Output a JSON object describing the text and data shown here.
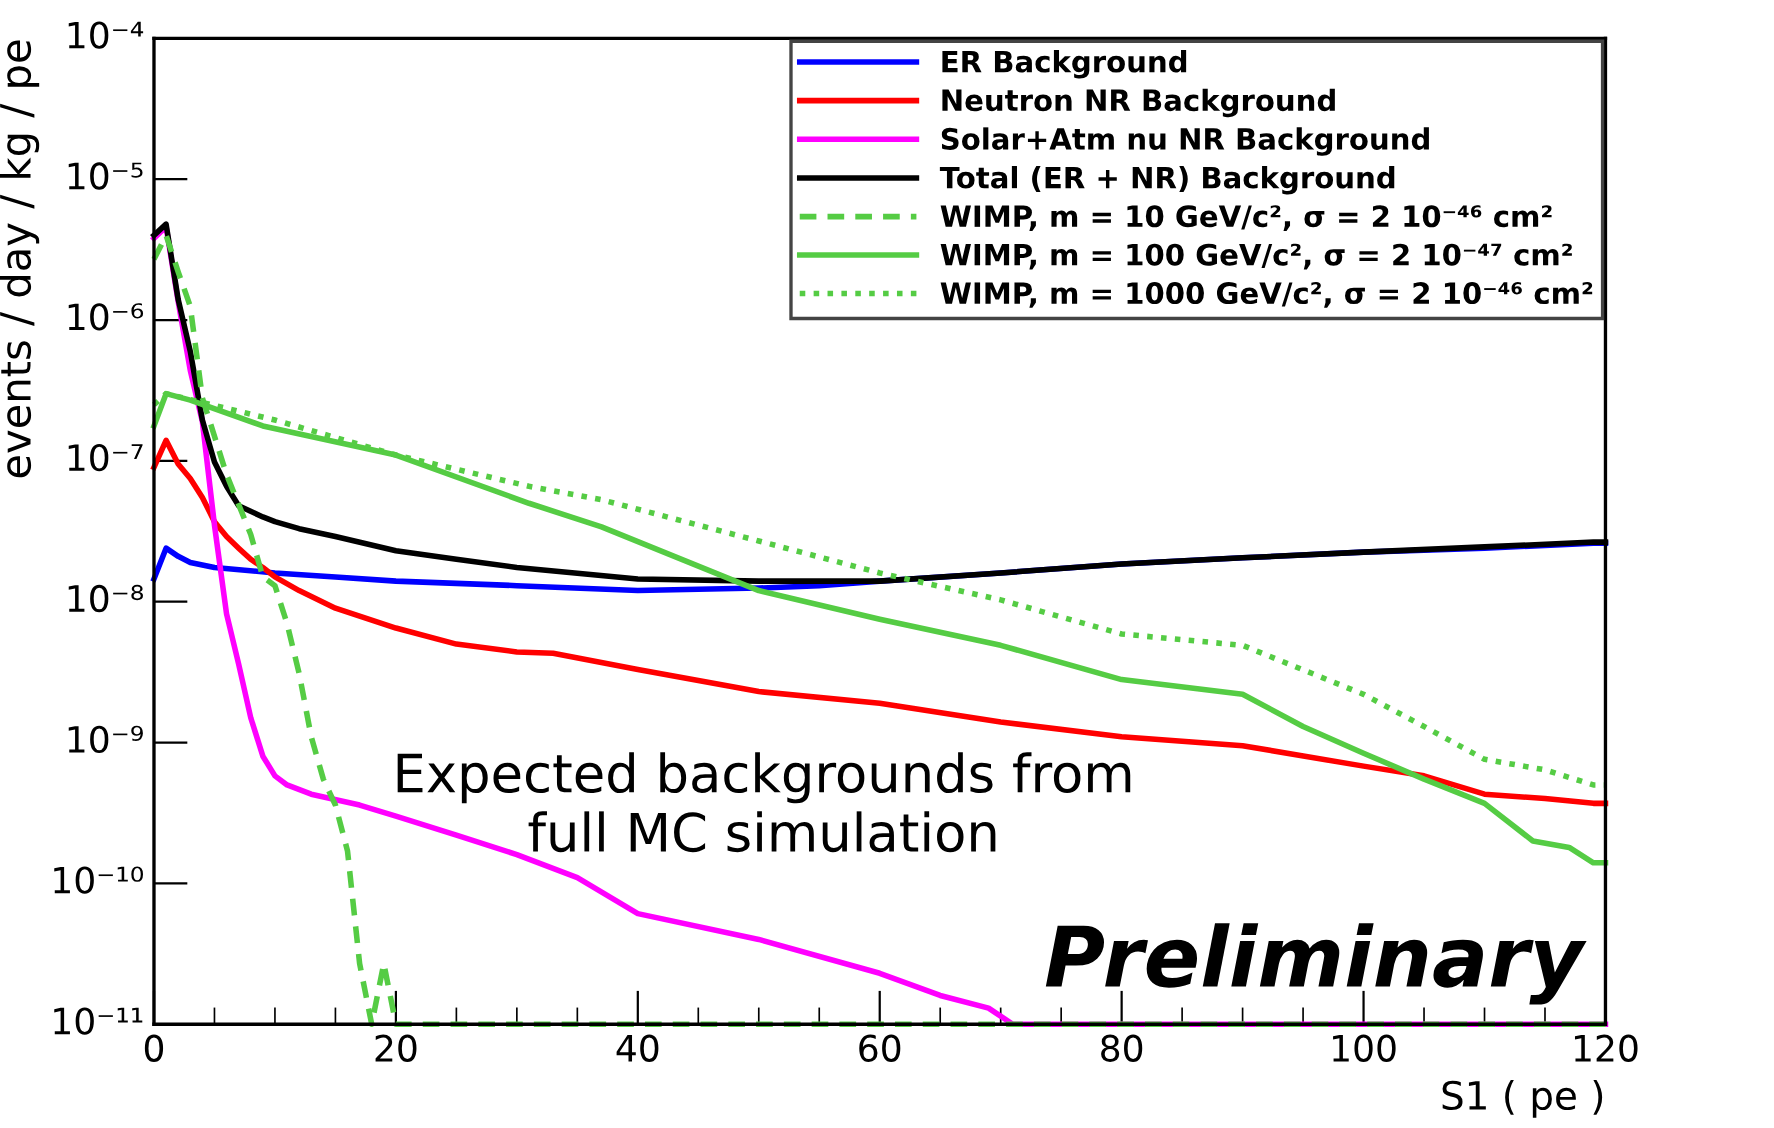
{
  "chart_data": {
    "type": "line",
    "xlabel": "S1 ( pe )",
    "ylabel": "events / day / kg / pe",
    "xlim": [
      0,
      120
    ],
    "xticks": [
      0,
      20,
      40,
      60,
      80,
      100,
      120
    ],
    "ylim": [
      1e-11,
      0.0001
    ],
    "log": "y",
    "yticks": [
      {
        "value": 1e-11,
        "label": "10⁻¹¹"
      },
      {
        "value": 1e-10,
        "label": "10⁻¹⁰"
      },
      {
        "value": 1e-09,
        "label": "10⁻⁹"
      },
      {
        "value": 1e-08,
        "label": "10⁻⁸"
      },
      {
        "value": 1e-07,
        "label": "10⁻⁷"
      },
      {
        "value": 1e-06,
        "label": "10⁻⁶"
      },
      {
        "value": 1e-05,
        "label": "10⁻⁵"
      },
      {
        "value": 0.0001,
        "label": "10⁻⁴"
      }
    ],
    "grid": false,
    "legend": "top right",
    "annotations": [
      "Expected backgrounds from\nfull MC simulation",
      "Preliminary"
    ],
    "series": [
      {
        "name": "ER Background",
        "color": "#0000ff",
        "line_style": "solid",
        "x": [
          0,
          1,
          2,
          3,
          5,
          10,
          15,
          20,
          30,
          40,
          50,
          55,
          60,
          70,
          80,
          90,
          100,
          110,
          119,
          120
        ],
        "values": [
          1.45e-08,
          2.4e-08,
          2.1e-08,
          1.9e-08,
          1.75e-08,
          1.6e-08,
          1.5e-08,
          1.4e-08,
          1.3e-08,
          1.2e-08,
          1.25e-08,
          1.3e-08,
          1.4e-08,
          1.6e-08,
          1.85e-08,
          2.05e-08,
          2.25e-08,
          2.4e-08,
          2.6e-08,
          2.6e-08
        ]
      },
      {
        "name": "Neutron NR Background",
        "color": "#ff0000",
        "line_style": "solid",
        "x": [
          0,
          1,
          2,
          3,
          4,
          5,
          6,
          7,
          8,
          9,
          10,
          12,
          15,
          20,
          25,
          30,
          33,
          40,
          50,
          60,
          70,
          80,
          90,
          100,
          105,
          110,
          115,
          119,
          120
        ],
        "values": [
          9e-08,
          1.4e-07,
          9.5e-08,
          7.5e-08,
          5.5e-08,
          3.7e-08,
          2.9e-08,
          2.4e-08,
          2e-08,
          1.75e-08,
          1.5e-08,
          1.2e-08,
          9e-09,
          6.5e-09,
          5e-09,
          4.4e-09,
          4.3e-09,
          3.3e-09,
          2.3e-09,
          1.9e-09,
          1.4e-09,
          1.1e-09,
          9.5e-10,
          6.8e-10,
          5.8e-10,
          4.3e-10,
          4e-10,
          3.7e-10,
          3.7e-10
        ]
      },
      {
        "name": "Solar+Atm nu NR Background",
        "color": "#ff00ff",
        "line_style": "solid",
        "x": [
          0,
          1,
          2,
          3,
          4,
          5,
          6,
          7,
          8,
          9,
          10,
          11,
          13,
          17,
          20,
          25,
          30,
          35,
          40,
          50,
          60,
          65,
          69,
          71,
          120
        ],
        "values": [
          3.8e-06,
          4.6e-06,
          1.35e-06,
          4.4e-07,
          1.9e-07,
          3.5e-08,
          8.2e-09,
          3.6e-09,
          1.5e-09,
          8e-10,
          5.8e-10,
          5e-10,
          4.3e-10,
          3.6e-10,
          3e-10,
          2.2e-10,
          1.6e-10,
          1.1e-10,
          6.1e-11,
          4e-11,
          2.3e-11,
          1.6e-11,
          1.3e-11,
          1e-11,
          1e-11
        ]
      },
      {
        "name": "Total (ER + NR) Background",
        "color": "#000000",
        "line_style": "solid",
        "x": [
          0,
          1,
          2,
          3,
          4,
          5,
          6,
          7,
          9,
          10,
          12,
          15,
          20,
          25,
          30,
          40,
          50,
          60,
          70,
          80,
          90,
          100,
          110,
          119,
          120
        ],
        "values": [
          4e-06,
          4.8e-06,
          1.4e-06,
          6e-07,
          1.95e-07,
          9.8e-08,
          6.6e-08,
          4.8e-08,
          4e-08,
          3.7e-08,
          3.3e-08,
          2.9e-08,
          2.3e-08,
          2e-08,
          1.75e-08,
          1.45e-08,
          1.4e-08,
          1.4e-08,
          1.6e-08,
          1.85e-08,
          2.05e-08,
          2.25e-08,
          2.45e-08,
          2.65e-08,
          2.65e-08
        ]
      },
      {
        "name": "WIMP, m = 10 GeV/c², σ = 2 10⁻⁴⁶ cm²",
        "color": "#55cc44",
        "line_style": "dashed",
        "x": [
          0,
          1,
          2,
          3,
          4,
          6,
          8,
          9,
          10,
          11,
          12,
          13,
          14,
          15,
          16,
          17,
          18,
          19,
          20,
          120
        ],
        "values": [
          2.7e-06,
          4e-06,
          2.2e-06,
          1.25e-06,
          2.8e-07,
          8e-08,
          3e-08,
          1.5e-08,
          1.3e-08,
          7e-09,
          3.1e-09,
          1.1e-09,
          5.5e-10,
          3.6e-10,
          1.7e-10,
          2.7e-11,
          1e-11,
          2.7e-11,
          1e-11,
          1e-11
        ]
      },
      {
        "name": "WIMP, m = 100 GeV/c², σ = 2 10⁻⁴⁷ cm²",
        "color": "#55cc44",
        "line_style": "solid",
        "x": [
          0,
          1,
          3,
          9,
          20,
          31,
          37,
          50,
          60,
          70,
          80,
          90,
          95,
          100,
          105,
          110,
          114,
          117,
          119,
          120
        ],
        "values": [
          1.77e-07,
          3e-07,
          2.7e-07,
          1.77e-07,
          1.1e-07,
          5e-08,
          3.4e-08,
          1.2e-08,
          7.5e-09,
          4.9e-09,
          2.8e-09,
          2.2e-09,
          1.3e-09,
          8.4e-10,
          5.5e-10,
          3.7e-10,
          2e-10,
          1.8e-10,
          1.4e-10,
          1.4e-10
        ]
      },
      {
        "name": "WIMP, m = 1000 GeV/c², σ = 2 10⁻⁴⁶ cm²",
        "color": "#55cc44",
        "line_style": "dotted",
        "x": [
          0,
          1,
          10,
          20,
          31,
          37,
          50,
          60,
          70,
          80,
          90,
          100,
          105,
          110,
          115,
          119,
          120
        ],
        "values": [
          2.5e-07,
          3e-07,
          1.95e-07,
          1.1e-07,
          6.6e-08,
          5.3e-08,
          2.7e-08,
          1.6e-08,
          1.03e-08,
          5.9e-09,
          4.9e-09,
          2.2e-09,
          1.3e-09,
          7.6e-10,
          6.4e-10,
          5e-10,
          5e-10
        ]
      }
    ]
  }
}
